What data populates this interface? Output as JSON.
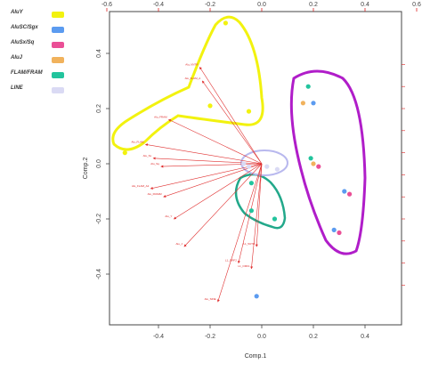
{
  "legend": [
    {
      "label": "AluY",
      "color": "#f2f20f"
    },
    {
      "label": "AluSC/Sgx",
      "color": "#5b9bf0"
    },
    {
      "label": "AluSx/Sq",
      "color": "#ea4f96"
    },
    {
      "label": "AluJ",
      "color": "#f1b25c"
    },
    {
      "label": "FLAM/FRAM",
      "color": "#22c49d"
    },
    {
      "label": "LINE",
      "color": "#dadaf4"
    }
  ],
  "chart_data": {
    "type": "scatter",
    "title": "",
    "xlabel": "Comp.1",
    "ylabel": "Comp.2",
    "xlim": [
      -0.6,
      0.5
    ],
    "ylim": [
      -0.55,
      0.5
    ],
    "xticks": [
      "-0.4",
      "-0.2",
      "0.0",
      "0.2",
      "0.4"
    ],
    "yticks": [
      "-0.4",
      "-0.2",
      "0.0",
      "0.2",
      "0.4"
    ],
    "top_ticks": [
      "-0.6",
      "-0.4",
      "-0.2",
      "0.0",
      "0.2",
      "0.4",
      "0.6"
    ],
    "grid": false,
    "loadings": [
      {
        "label": "Alu_VNTR",
        "x": -0.24,
        "y": 0.35
      },
      {
        "label": "Alu_FLAM_A",
        "x": -0.23,
        "y": 0.3
      },
      {
        "label": "Alu_FRAM",
        "x": -0.36,
        "y": 0.16
      },
      {
        "label": "Alu_FLAM",
        "x": -0.45,
        "y": 0.07
      },
      {
        "label": "Alu_Sx",
        "x": -0.42,
        "y": 0.02
      },
      {
        "label": "Alu_Sq",
        "x": -0.39,
        "y": -0.01
      },
      {
        "label": "Alu_FLAM_A2",
        "x": -0.43,
        "y": -0.09
      },
      {
        "label": "Alu_FRAM2",
        "x": -0.38,
        "y": -0.12
      },
      {
        "label": "Alu_Y",
        "x": -0.34,
        "y": -0.2
      },
      {
        "label": "Alu_J",
        "x": -0.3,
        "y": -0.3
      },
      {
        "label": "L1_ORF2",
        "x": -0.09,
        "y": -0.36
      },
      {
        "label": "L1_5UTR",
        "x": -0.02,
        "y": -0.3
      },
      {
        "label": "L1_ORF1",
        "x": -0.04,
        "y": -0.38
      },
      {
        "label": "Alu_SINE",
        "x": -0.17,
        "y": -0.5
      }
    ],
    "points": [
      {
        "x": -0.14,
        "y": 0.51,
        "color": "#f2f20f"
      },
      {
        "x": -0.2,
        "y": 0.21,
        "color": "#f2f20f"
      },
      {
        "x": -0.05,
        "y": 0.19,
        "color": "#f2f20f"
      },
      {
        "x": -0.53,
        "y": 0.04,
        "color": "#f2f20f"
      },
      {
        "x": -0.07,
        "y": 0.0,
        "color": "#dadaf4"
      },
      {
        "x": -0.05,
        "y": -0.01,
        "color": "#dadaf4"
      },
      {
        "x": 0.02,
        "y": -0.01,
        "color": "#dadaf4"
      },
      {
        "x": 0.06,
        "y": -0.02,
        "color": "#dadaf4"
      },
      {
        "x": -0.04,
        "y": -0.07,
        "color": "#22c49d"
      },
      {
        "x": -0.04,
        "y": -0.17,
        "color": "#22c49d"
      },
      {
        "x": 0.05,
        "y": -0.2,
        "color": "#22c49d"
      },
      {
        "x": 0.18,
        "y": 0.28,
        "color": "#22c49d"
      },
      {
        "x": 0.16,
        "y": 0.22,
        "color": "#f1b25c"
      },
      {
        "x": 0.2,
        "y": 0.22,
        "color": "#5b9bf0"
      },
      {
        "x": 0.19,
        "y": 0.02,
        "color": "#22c49d"
      },
      {
        "x": 0.2,
        "y": 0.0,
        "color": "#f1b25c"
      },
      {
        "x": 0.22,
        "y": -0.01,
        "color": "#ea4f96"
      },
      {
        "x": 0.32,
        "y": -0.1,
        "color": "#5b9bf0"
      },
      {
        "x": 0.34,
        "y": -0.11,
        "color": "#ea4f96"
      },
      {
        "x": 0.28,
        "y": -0.24,
        "color": "#5b9bf0"
      },
      {
        "x": 0.3,
        "y": -0.25,
        "color": "#ea4f96"
      },
      {
        "x": -0.02,
        "y": -0.48,
        "color": "#5b9bf0"
      }
    ],
    "groups": [
      {
        "name": "yellow",
        "color": "#f2f20f"
      },
      {
        "name": "magenta",
        "color": "#b01dc9"
      },
      {
        "name": "teal",
        "color": "#22a88a"
      },
      {
        "name": "lavender",
        "color": "#b8b8ee"
      }
    ]
  }
}
